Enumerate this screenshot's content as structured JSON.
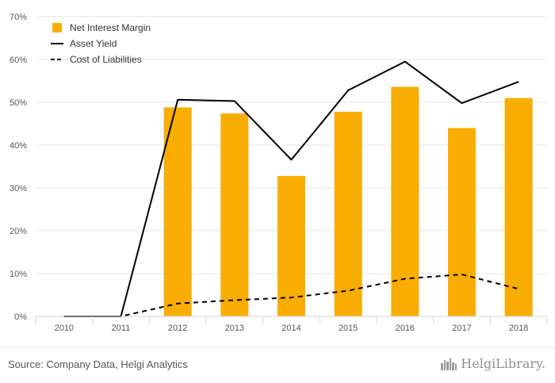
{
  "chart_data": {
    "type": "bar",
    "categories": [
      "2010",
      "2011",
      "2012",
      "2013",
      "2014",
      "2015",
      "2016",
      "2017",
      "2018"
    ],
    "y_tick_labels": [
      "0%",
      "10%",
      "20%",
      "30%",
      "40%",
      "50%",
      "60%",
      "70%"
    ],
    "ylim": [
      0,
      70
    ],
    "grid": true,
    "legend_position": "top-left",
    "series": [
      {
        "name": "Net Interest Margin",
        "kind": "bar",
        "color": "#f9ad00",
        "values": [
          null,
          null,
          48.8,
          47.4,
          32.8,
          47.8,
          53.6,
          44.0,
          51.0
        ]
      },
      {
        "name": "Asset Yield",
        "kind": "line",
        "style": "solid",
        "color": "#000000",
        "values": [
          0.0,
          0.0,
          50.6,
          50.3,
          36.6,
          52.8,
          59.5,
          49.8,
          54.8
        ]
      },
      {
        "name": "Cost of Liabilities",
        "kind": "line",
        "style": "dashed",
        "color": "#000000",
        "values": [
          0.0,
          0.0,
          3.0,
          3.8,
          4.4,
          6.0,
          8.8,
          9.8,
          6.4
        ]
      }
    ]
  },
  "footer": {
    "source": "Source: Company Data, Helgi Analytics",
    "brand": "HelgiLibrary."
  },
  "icons": {
    "brand_logo": "helgi-skyline-icon"
  }
}
